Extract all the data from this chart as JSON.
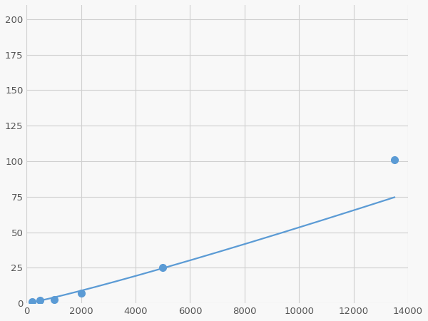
{
  "x_points": [
    200,
    500,
    1000,
    2000,
    5000,
    13500
  ],
  "y_points": [
    1.0,
    2.0,
    2.5,
    7.0,
    25.0,
    101.0
  ],
  "line_color": "#5b9bd5",
  "marker_color": "#5b9bd5",
  "marker_size": 7,
  "line_width": 1.6,
  "xlim": [
    0,
    14000
  ],
  "ylim": [
    0,
    210
  ],
  "xticks": [
    0,
    2000,
    4000,
    6000,
    8000,
    10000,
    12000,
    14000
  ],
  "yticks": [
    0,
    25,
    50,
    75,
    100,
    125,
    150,
    175,
    200
  ],
  "grid_color": "#d0d0d0",
  "background_color": "#f8f8f8",
  "tick_label_color": "#555555",
  "tick_fontsize": 9.5,
  "figsize": [
    6.0,
    4.5
  ],
  "dpi": 100
}
